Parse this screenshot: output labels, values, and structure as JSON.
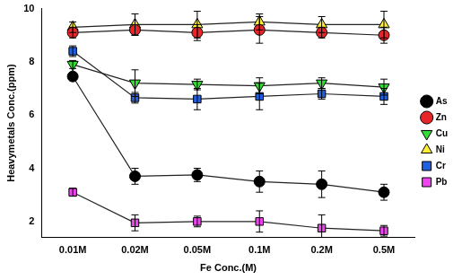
{
  "chart_data": {
    "type": "line",
    "x_label": "Fe Conc.(M)",
    "y_label": "Heavymetals Conc.(ppm)",
    "categories": [
      "0.01M",
      "0.02M",
      "0.05M",
      "0.1M",
      "0.2M",
      "0.5M"
    ],
    "ylim": [
      1.4,
      10
    ],
    "yticks": [
      2,
      4,
      6,
      8,
      10
    ],
    "grid": false,
    "legend": "right",
    "series": [
      {
        "name": "As",
        "color": "#000000",
        "marker": "circle",
        "values": [
          7.45,
          3.7,
          3.75,
          3.5,
          3.4,
          3.1
        ],
        "errors": [
          0.15,
          0.3,
          0.25,
          0.4,
          0.5,
          0.3
        ]
      },
      {
        "name": "Zn",
        "color": "#e8262a",
        "marker": "circle",
        "values": [
          9.1,
          9.2,
          9.1,
          9.2,
          9.1,
          9.0
        ],
        "errors": [
          0.2,
          0.2,
          0.3,
          0.5,
          0.2,
          0.3
        ]
      },
      {
        "name": "Cu",
        "color": "#33dd33",
        "marker": "triangle-down",
        "values": [
          7.9,
          7.2,
          7.15,
          7.1,
          7.2,
          7.05
        ],
        "errors": [
          0.15,
          0.5,
          0.2,
          0.3,
          0.2,
          0.3
        ]
      },
      {
        "name": "Ni",
        "color": "#ffee33",
        "marker": "triangle",
        "values": [
          9.3,
          9.4,
          9.4,
          9.5,
          9.4,
          9.4
        ],
        "errors": [
          0.2,
          0.4,
          0.5,
          0.3,
          0.3,
          0.5
        ]
      },
      {
        "name": "Cr",
        "color": "#1f5fe0",
        "marker": "square",
        "values": [
          8.4,
          6.65,
          6.6,
          6.7,
          6.8,
          6.7
        ],
        "errors": [
          0.2,
          0.2,
          0.4,
          0.5,
          0.2,
          0.3
        ]
      },
      {
        "name": "Pb",
        "color": "#ee44ee",
        "marker": "square",
        "values": [
          3.1,
          1.95,
          2.0,
          2.0,
          1.75,
          1.65
        ],
        "errors": [
          0.15,
          0.3,
          0.2,
          0.4,
          0.5,
          0.2
        ]
      }
    ]
  }
}
